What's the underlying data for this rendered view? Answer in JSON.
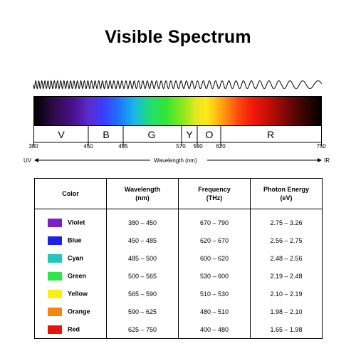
{
  "title": "Visible Spectrum",
  "band_letters": [
    "V",
    "B",
    "G",
    "Y",
    "O",
    "R"
  ],
  "tick_labels": [
    "380",
    "450",
    "495",
    "570",
    "590",
    "620",
    "750"
  ],
  "axis": {
    "left": "UV",
    "center": "Wavelength (nm)",
    "right": "IR"
  },
  "table": {
    "headers": [
      "Color",
      "Wavelength\n(nm)",
      "Frequency\n(THz)",
      "Photon Energy\n(eV)"
    ],
    "rows": [
      {
        "name": "Violet",
        "color": "#7b1fc6",
        "wavelength": "380 – 450",
        "frequency": "670 – 790",
        "energy": "2.75 – 3.26"
      },
      {
        "name": "Blue",
        "color": "#1b22e6",
        "wavelength": "450 – 485",
        "frequency": "620 – 670",
        "energy": "2.56 – 2.75"
      },
      {
        "name": "Cyan",
        "color": "#20c8be",
        "wavelength": "485 – 500",
        "frequency": "600 – 620",
        "energy": "2.48 – 2.56"
      },
      {
        "name": "Green",
        "color": "#2ee64a",
        "wavelength": "500 – 565",
        "frequency": "530 – 600",
        "energy": "2.19 – 2.48"
      },
      {
        "name": "Yellow",
        "color": "#f7f012",
        "wavelength": "565 – 590",
        "frequency": "510 – 530",
        "energy": "2.10 – 2.19"
      },
      {
        "name": "Orange",
        "color": "#f5850f",
        "wavelength": "590 – 625",
        "frequency": "480 – 510",
        "energy": "1.98 – 2.10"
      },
      {
        "name": "Red",
        "color": "#e8140c",
        "wavelength": "625 – 750",
        "frequency": "400 – 480",
        "energy": "1.65 – 1.98"
      }
    ]
  }
}
